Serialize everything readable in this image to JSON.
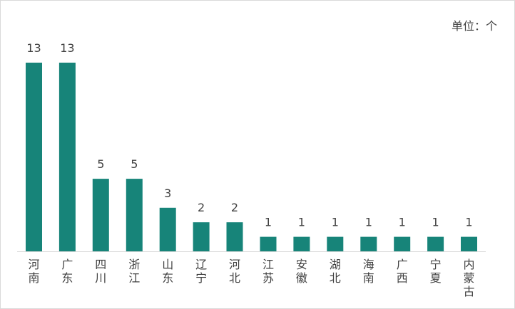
{
  "chart_data": {
    "type": "bar",
    "unit_label": "单位：个",
    "categories": [
      "河南",
      "广东",
      "四川",
      "浙江",
      "山东",
      "辽宁",
      "河北",
      "江苏",
      "安徽",
      "湖北",
      "海南",
      "广西",
      "宁夏",
      "内蒙古"
    ],
    "values": [
      13,
      13,
      5,
      5,
      3,
      2,
      2,
      1,
      1,
      1,
      1,
      1,
      1,
      1
    ],
    "ylim": [
      0,
      13
    ],
    "grid": false,
    "legend": "none",
    "bar_color": "#178479",
    "axis_color": "#d9d9d9",
    "text_color": "#404040"
  }
}
